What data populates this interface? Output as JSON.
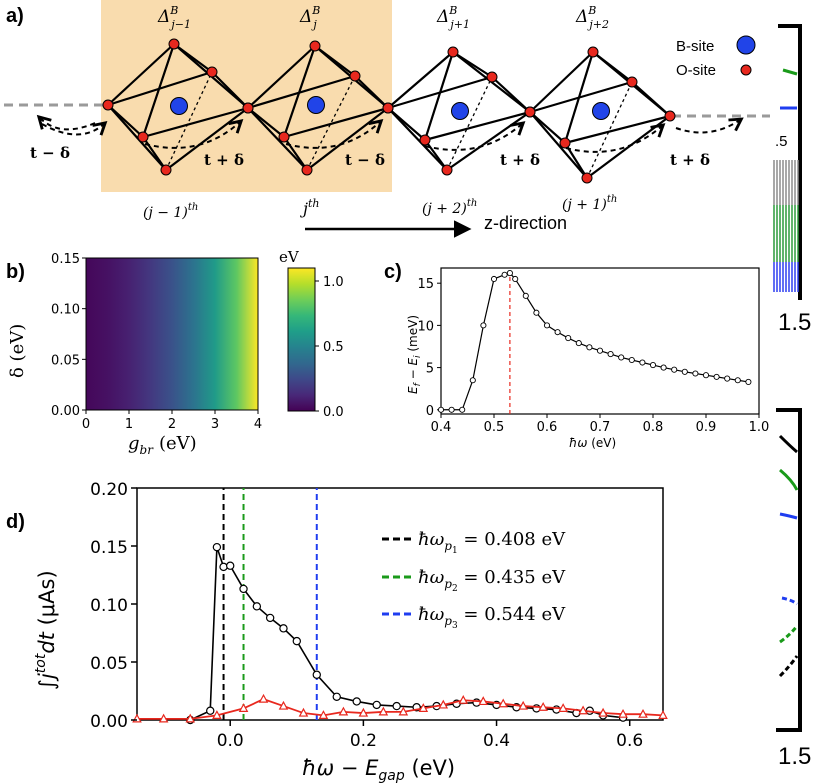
{
  "panels": {
    "a": {
      "letter": "a)",
      "deltas": [
        {
          "base": "Δ",
          "sup": "B",
          "sub": "j−1"
        },
        {
          "base": "Δ",
          "sup": "B",
          "sub": "j"
        },
        {
          "base": "Δ",
          "sup": "B",
          "sub": "j+1"
        },
        {
          "base": "Δ",
          "sup": "B",
          "sub": "j+2"
        }
      ],
      "legend": {
        "b_site": "B-site",
        "o_site": "O-site"
      },
      "hops": [
        "t − δ",
        "t + δ",
        "t − δ",
        "t + δ",
        "t + δ"
      ],
      "sites": [
        {
          "base": "(j − 1)",
          "sup": "th"
        },
        {
          "base": "j",
          "sup": "th"
        },
        {
          "base": "(j + 2)",
          "sup": "th"
        },
        {
          "base": "(j + 1)",
          "sup": "th"
        }
      ],
      "direction": "z-direction",
      "colors": {
        "highlight": "#f9dcae",
        "b_site": "#2144e8",
        "o_site": "#e8281e"
      }
    },
    "b": {
      "letter": "b)",
      "xlabel": {
        "base": "g",
        "sub": "br",
        "unit": "(eV)"
      },
      "ylabel": "δ (eV)",
      "xticks": [
        "0",
        "1",
        "2",
        "3",
        "4"
      ],
      "yticks": [
        "0.00",
        "0.05",
        "0.10",
        "0.15"
      ],
      "colorbar": {
        "label": "eV",
        "ticks": [
          "0.0",
          "0.5",
          "1.0"
        ]
      },
      "colormap": [
        "#440154",
        "#482878",
        "#3e4989",
        "#31688e",
        "#26828e",
        "#1f9e89",
        "#35b779",
        "#6ece58",
        "#b5de2b",
        "#fde725"
      ]
    },
    "c": {
      "letter": "c)",
      "xticks": [
        "0.4",
        "0.5",
        "0.6",
        "0.7",
        "0.8",
        "0.9",
        "1.0"
      ],
      "yticks": [
        "0",
        "5",
        "10",
        "15"
      ]
    },
    "d": {
      "letter": "d)",
      "xticks": [
        "0.0",
        "0.2",
        "0.4",
        "0.6"
      ],
      "yticks": [
        "0.00",
        "0.05",
        "0.10",
        "0.15",
        "0.20"
      ],
      "legend": [
        {
          "label": "ħω",
          "sub": "p",
          "subsub": "1",
          "value": " = 0.408 eV",
          "color": "#000000"
        },
        {
          "label": "ħω",
          "sub": "p",
          "subsub": "2",
          "value": " = 0.435 eV",
          "color": "#1a9a1a"
        },
        {
          "label": "ħω",
          "sub": "p",
          "subsub": "3",
          "value": " = 0.544 eV",
          "color": "#1f3df0"
        }
      ]
    },
    "right_strip": {
      "labels": [
        ".5",
        "1.5",
        "1.5"
      ]
    }
  },
  "chart_data": [
    {
      "type": "heatmap",
      "panel": "b",
      "xlabel": "g_br (eV)",
      "ylabel": "δ (eV)",
      "xlim": [
        0,
        4
      ],
      "ylim": [
        0,
        0.15
      ],
      "colorbar_label": "eV",
      "zlim": [
        0,
        1.1
      ],
      "x": [
        0,
        0.5,
        1.0,
        1.5,
        2.0,
        2.5,
        3.0,
        3.5,
        4.0
      ],
      "z_profile": [
        0.02,
        0.05,
        0.1,
        0.18,
        0.28,
        0.42,
        0.6,
        0.82,
        1.1
      ]
    },
    {
      "type": "line",
      "panel": "c",
      "xlabel": "ħω (eV)",
      "ylabel": "E_f − E_i (meV)",
      "xlim": [
        0.4,
        1.0
      ],
      "ylim": [
        -0.5,
        16.8
      ],
      "peak_x": 0.53,
      "x": [
        0.4,
        0.42,
        0.44,
        0.46,
        0.48,
        0.5,
        0.52,
        0.53,
        0.54,
        0.56,
        0.58,
        0.6,
        0.62,
        0.64,
        0.66,
        0.68,
        0.7,
        0.72,
        0.74,
        0.76,
        0.78,
        0.8,
        0.82,
        0.84,
        0.86,
        0.88,
        0.9,
        0.92,
        0.94,
        0.96,
        0.98
      ],
      "y": [
        0,
        0,
        0,
        3.5,
        10,
        15.5,
        16,
        16.2,
        15.5,
        13.5,
        11.5,
        10,
        9.2,
        8.5,
        7.9,
        7.4,
        7.0,
        6.6,
        6.2,
        5.9,
        5.6,
        5.3,
        5.0,
        4.75,
        4.5,
        4.3,
        4.1,
        3.9,
        3.7,
        3.5,
        3.3
      ]
    },
    {
      "type": "line",
      "panel": "d",
      "xlabel": "ħω − E_gap (eV)",
      "ylabel": "∫ j^tot dt (μAs)",
      "xlim": [
        -0.14,
        0.65
      ],
      "ylim": [
        0,
        0.2
      ],
      "vlines": [
        -0.01,
        0.02,
        0.13
      ],
      "series": [
        {
          "x": [
            -0.06,
            -0.03,
            -0.02,
            -0.01,
            0.0,
            0.02,
            0.04,
            0.06,
            0.08,
            0.1,
            0.13,
            0.16,
            0.19,
            0.22,
            0.25,
            0.28,
            0.31,
            0.34,
            0.37,
            0.4,
            0.43,
            0.46,
            0.49,
            0.52,
            0.54,
            0.56,
            0.59
          ],
          "y": [
            0,
            0.008,
            0.149,
            0.132,
            0.133,
            0.113,
            0.098,
            0.088,
            0.079,
            0.068,
            0.039,
            0.02,
            0.016,
            0.013,
            0.012,
            0.011,
            0.012,
            0.014,
            0.015,
            0.013,
            0.011,
            0.01,
            0.009,
            0.006,
            0.008,
            0.004,
            0.002
          ]
        },
        {
          "x": [
            -0.14,
            -0.1,
            -0.06,
            -0.02,
            0.02,
            0.05,
            0.08,
            0.11,
            0.14,
            0.17,
            0.2,
            0.23,
            0.26,
            0.29,
            0.32,
            0.35,
            0.38,
            0.41,
            0.44,
            0.47,
            0.5,
            0.53,
            0.56,
            0.59,
            0.62,
            0.65
          ],
          "y": [
            0.001,
            0.001,
            0.001,
            0.004,
            0.01,
            0.018,
            0.012,
            0.006,
            0.004,
            0.007,
            0.006,
            0.007,
            0.007,
            0.01,
            0.013,
            0.017,
            0.016,
            0.014,
            0.012,
            0.011,
            0.01,
            0.008,
            0.006,
            0.005,
            0.005,
            0.004
          ]
        }
      ]
    }
  ]
}
